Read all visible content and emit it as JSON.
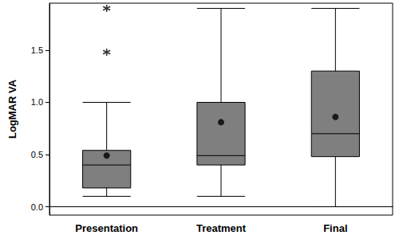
{
  "chart_data": {
    "type": "boxplot",
    "y_label": "LogMAR VA",
    "categories": [
      "Presentation",
      "Treatment",
      "Final"
    ],
    "boxes": [
      [
        0.1,
        0.18,
        0.4,
        0.54,
        1.0
      ],
      [
        0.1,
        0.4,
        0.49,
        1.0,
        1.9
      ],
      [
        0.0,
        0.48,
        0.7,
        1.3,
        1.9
      ]
    ],
    "means": [
      0.49,
      0.81,
      0.86
    ],
    "outliers": [
      [
        1.48,
        1.9
      ],
      [],
      []
    ],
    "color": "#7f7f7f",
    "ylim": [
      -0.08,
      1.95
    ],
    "yticks": [
      {
        "value": 0,
        "label": "0.0"
      },
      0.5,
      {
        "value": 1,
        "label": "1.0"
      },
      1.5
    ],
    "grid": false
  }
}
